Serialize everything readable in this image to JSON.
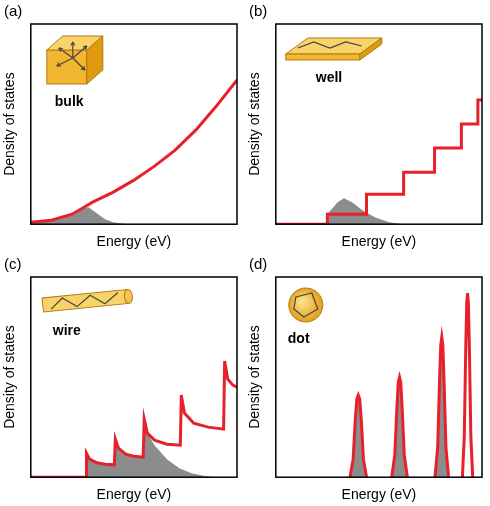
{
  "chart_data": [
    {
      "type": "line",
      "label": "(a)",
      "annotation": "bulk",
      "xlabel": "Energy (eV)",
      "ylabel": "Density of states",
      "xlim": [
        0,
        10
      ],
      "ylim": [
        0,
        10
      ],
      "tick_labels": false,
      "grid": false,
      "series": [
        {
          "color": "#e8202a",
          "x": [
            0,
            1,
            2,
            2.5,
            3,
            4,
            5,
            6,
            7,
            8,
            9,
            10
          ],
          "values": [
            0.1,
            0.2,
            0.5,
            0.8,
            1.1,
            1.6,
            2.2,
            2.9,
            3.7,
            4.7,
            5.9,
            7.2
          ]
        },
        {
          "type": "area",
          "color": "#8c8c8c",
          "x": [
            0,
            1,
            1.5,
            2,
            2.5,
            2.8,
            3.2,
            3.6,
            4,
            4.5,
            5
          ],
          "values": [
            0.05,
            0.15,
            0.3,
            0.5,
            0.8,
            0.85,
            0.55,
            0.25,
            0.1,
            0.02,
            0
          ]
        }
      ]
    },
    {
      "type": "line",
      "label": "(b)",
      "annotation": "well",
      "xlabel": "Energy (eV)",
      "ylabel": "Density of states",
      "xlim": [
        0,
        10
      ],
      "ylim": [
        0,
        10
      ],
      "tick_labels": false,
      "grid": false,
      "series": [
        {
          "color": "#e8202a",
          "x": [
            0,
            2.5,
            2.5,
            4.4,
            4.4,
            6.2,
            6.2,
            7.7,
            7.7,
            9.0,
            9.0,
            9.8,
            9.8,
            10
          ],
          "values": [
            0,
            0,
            0.5,
            0.5,
            1.5,
            1.5,
            2.6,
            2.6,
            3.8,
            3.8,
            5.0,
            5.0,
            6.2,
            6.2
          ]
        },
        {
          "type": "area",
          "color": "#8c8c8c",
          "x": [
            2.5,
            2.5,
            3,
            3.3,
            3.7,
            4.2,
            4.8,
            5.5,
            6.2
          ],
          "values": [
            0,
            0.5,
            1.1,
            1.3,
            1.1,
            0.7,
            0.35,
            0.1,
            0
          ]
        }
      ]
    },
    {
      "type": "line",
      "label": "(c)",
      "annotation": "wire",
      "xlabel": "Energy (eV)",
      "ylabel": "Density of states",
      "xlim": [
        0,
        10
      ],
      "ylim": [
        0,
        10
      ],
      "tick_labels": false,
      "grid": false,
      "series": [
        {
          "color": "#e8202a",
          "x": [
            0,
            2.7,
            2.7,
            2.85,
            3.2,
            3.6,
            4.05,
            4.1,
            4.25,
            4.6,
            5.0,
            5.45,
            5.5,
            5.65,
            6.0,
            6.6,
            7.25,
            7.3,
            7.45,
            7.9,
            8.6,
            9.35,
            9.4,
            9.55,
            9.8,
            10
          ],
          "values": [
            0,
            0,
            1.2,
            0.9,
            0.72,
            0.65,
            0.62,
            1.9,
            1.45,
            1.15,
            1.05,
            1.0,
            2.9,
            2.2,
            1.85,
            1.65,
            1.6,
            4.1,
            3.2,
            2.7,
            2.5,
            2.4,
            5.8,
            4.9,
            4.6,
            4.5
          ]
        },
        {
          "type": "area",
          "color": "#8c8c8c",
          "x": [
            2.7,
            2.7,
            2.85,
            3.2,
            3.6,
            4.05,
            4.1,
            4.25,
            4.6,
            5.0,
            5.45,
            5.5,
            5.65,
            6.0,
            6.6,
            7.2,
            7.8,
            8.5,
            9.0
          ],
          "values": [
            0,
            1.2,
            0.9,
            0.72,
            0.65,
            0.62,
            1.9,
            1.45,
            1.15,
            1.05,
            1.0,
            2.9,
            2.2,
            1.6,
            0.9,
            0.45,
            0.2,
            0.05,
            0
          ]
        }
      ]
    },
    {
      "type": "line",
      "label": "(d)",
      "annotation": "dot",
      "xlabel": "Energy (eV)",
      "ylabel": "Density of states",
      "xlim": [
        0,
        10
      ],
      "ylim": [
        0,
        10
      ],
      "tick_labels": false,
      "grid": false,
      "series": [
        {
          "color": "#e8202a",
          "x": [
            3.6,
            3.75,
            3.85,
            3.93,
            4.0,
            4.07,
            4.15,
            4.25,
            4.4,
            5.0,
            5.62,
            5.77,
            5.87,
            5.94,
            6.0,
            6.06,
            6.13,
            6.23,
            6.38,
            7.0,
            7.72,
            7.85,
            7.94,
            8.0,
            8.05,
            8.1,
            8.16,
            8.25,
            8.38,
            8.7,
            9.05,
            9.14,
            9.21,
            9.26,
            9.3,
            9.34,
            9.39,
            9.46,
            9.55
          ],
          "values": [
            0,
            0.9,
            2.8,
            3.9,
            4.1,
            3.9,
            2.8,
            0.9,
            0,
            null,
            0,
            1.1,
            3.4,
            4.75,
            5.0,
            4.75,
            3.4,
            1.1,
            0,
            null,
            0,
            1.5,
            4.8,
            6.6,
            7.0,
            6.6,
            4.8,
            1.5,
            0,
            null,
            0,
            2.0,
            6.3,
            8.7,
            9.2,
            8.7,
            6.3,
            2.0,
            0
          ]
        },
        {
          "type": "area",
          "color": "#8c8c8c",
          "x": [
            3.6,
            3.75,
            3.85,
            3.93,
            4.0,
            4.07,
            4.15,
            4.25,
            4.4,
            5.0,
            5.62,
            5.77,
            5.87,
            5.94,
            6.0,
            6.06,
            6.13,
            6.23,
            6.38,
            7.0,
            7.72,
            7.85,
            7.94,
            8.0,
            8.05,
            8.1,
            8.16,
            8.25,
            8.38
          ],
          "values": [
            0,
            0.9,
            2.8,
            3.9,
            4.1,
            3.9,
            2.8,
            0.9,
            0,
            null,
            0,
            1.1,
            3.4,
            4.75,
            5.0,
            4.75,
            3.4,
            1.1,
            0,
            null,
            0,
            1.5,
            4.8,
            6.6,
            7.0,
            6.6,
            4.8,
            1.5,
            0
          ]
        }
      ]
    }
  ]
}
